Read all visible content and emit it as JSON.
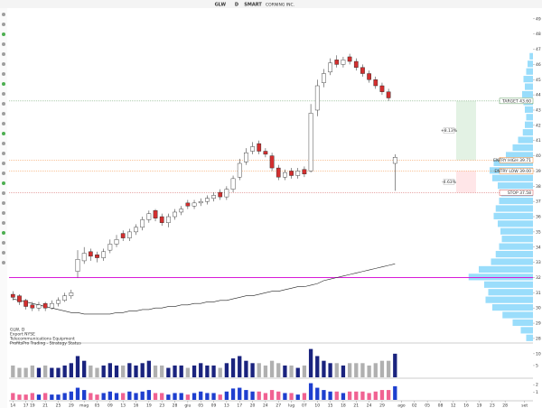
{
  "chart_data": {
    "type": "candlestick",
    "header": {
      "symbol": "GLW",
      "period": "D",
      "exchange": "SMART",
      "company": "CORNING INC."
    },
    "legend_lines": [
      "GLW, D",
      "Export NYSE",
      "Telecommunications Equipment",
      "ProfitsPro Trading - Strategy Status"
    ],
    "open": [
      30.9,
      30.8,
      30.5,
      30.2,
      30.0,
      30.3,
      30.0,
      30.3,
      30.5,
      30.8,
      32.4,
      33.1,
      33.7,
      33.5,
      33.3,
      33.8,
      34.2,
      34.9,
      34.6,
      35.0,
      35.3,
      35.8,
      36.4,
      36.0,
      35.6,
      36.0,
      36.3,
      36.9,
      36.7,
      36.9,
      37.0,
      37.2,
      37.6,
      37.3,
      37.8,
      38.6,
      39.6,
      40.3,
      40.8,
      40.3,
      40.0,
      39.2,
      38.6,
      39.0,
      38.7,
      39.1,
      39.0,
      43.0,
      44.8,
      45.5,
      46.3,
      46.0,
      46.5,
      46.2,
      45.8,
      45.4,
      45.0,
      44.6,
      44.2,
      39.5
    ],
    "high": [
      31.1,
      30.9,
      30.6,
      30.4,
      30.4,
      30.4,
      30.5,
      30.7,
      31.0,
      31.2,
      33.8,
      34.0,
      33.9,
      33.7,
      33.9,
      34.5,
      34.8,
      35.1,
      35.2,
      35.5,
      36.0,
      36.4,
      36.5,
      36.2,
      36.2,
      36.5,
      36.7,
      37.1,
      37.1,
      37.2,
      37.4,
      37.6,
      37.8,
      38.0,
      38.7,
      39.8,
      40.5,
      40.9,
      41.0,
      40.5,
      40.2,
      39.4,
      39.1,
      39.2,
      39.2,
      39.3,
      43.4,
      45.0,
      45.7,
      46.4,
      46.6,
      46.5,
      46.7,
      46.4,
      46.0,
      45.6,
      45.2,
      44.8,
      44.4,
      40.1
    ],
    "low": [
      30.5,
      30.2,
      29.9,
      29.8,
      29.8,
      29.8,
      29.9,
      30.1,
      30.4,
      30.6,
      32.0,
      32.9,
      33.1,
      33.0,
      33.1,
      33.6,
      34.0,
      34.4,
      34.4,
      34.8,
      35.1,
      35.6,
      35.7,
      35.4,
      35.3,
      35.8,
      36.1,
      36.5,
      36.5,
      36.7,
      36.8,
      37.0,
      37.1,
      37.1,
      37.6,
      38.4,
      39.4,
      40.1,
      40.1,
      39.9,
      39.0,
      38.4,
      38.4,
      38.5,
      38.5,
      38.6,
      38.9,
      42.6,
      44.5,
      45.3,
      45.8,
      45.8,
      46.0,
      45.6,
      45.2,
      44.8,
      44.4,
      44.0,
      43.6,
      37.7
    ],
    "close": [
      30.7,
      30.4,
      30.1,
      30.0,
      30.2,
      30.0,
      30.3,
      30.5,
      30.8,
      31.0,
      33.2,
      33.6,
      33.4,
      33.3,
      33.7,
      34.2,
      34.5,
      34.6,
      35.0,
      35.3,
      35.8,
      36.2,
      35.9,
      35.6,
      36.0,
      36.3,
      36.5,
      36.7,
      36.9,
      37.0,
      37.2,
      37.4,
      37.3,
      37.8,
      38.5,
      39.5,
      40.2,
      40.6,
      40.3,
      40.1,
      39.2,
      38.6,
      38.9,
      38.7,
      39.0,
      38.8,
      42.8,
      44.6,
      45.4,
      46.1,
      46.0,
      46.3,
      46.2,
      45.8,
      45.4,
      45.0,
      44.6,
      44.2,
      43.8,
      39.9
    ],
    "ma_long": {
      "color": "#222222",
      "values": [
        30.6,
        30.5,
        30.4,
        30.3,
        30.2,
        30.1,
        30.0,
        29.9,
        29.8,
        29.7,
        29.7,
        29.6,
        29.6,
        29.6,
        29.6,
        29.6,
        29.7,
        29.7,
        29.8,
        29.8,
        29.9,
        29.9,
        30.0,
        30.0,
        30.1,
        30.1,
        30.2,
        30.2,
        30.3,
        30.3,
        30.4,
        30.4,
        30.5,
        30.5,
        30.6,
        30.7,
        30.8,
        30.8,
        30.9,
        31.0,
        31.1,
        31.1,
        31.2,
        31.3,
        31.4,
        31.4,
        31.5,
        31.6,
        31.8,
        31.9,
        32.0,
        32.1,
        32.2,
        32.3,
        32.4,
        32.5,
        32.6,
        32.7,
        32.8,
        32.9
      ]
    },
    "up_color": "#ffffff",
    "down_color": "#d32f2f",
    "ylim": [
      27.7,
      49.7
    ],
    "yticks": [
      28,
      29,
      30,
      31,
      32,
      33,
      34,
      35,
      36,
      37,
      38,
      39,
      40,
      41,
      42,
      43,
      44,
      45,
      46,
      47,
      48,
      49
    ],
    "xlim": [
      -0.6,
      80.3
    ],
    "xticks": [
      {
        "value": 0,
        "label": "14"
      },
      {
        "value": 2,
        "label": "17"
      },
      {
        "value": 3,
        "label": "19"
      },
      {
        "value": 5,
        "label": "21"
      },
      {
        "value": 7,
        "label": "25"
      },
      {
        "value": 9,
        "label": "29"
      },
      {
        "value": 11,
        "label": "mag"
      },
      {
        "value": 13,
        "label": "05"
      },
      {
        "value": 15,
        "label": "09"
      },
      {
        "value": 17,
        "label": "13"
      },
      {
        "value": 19,
        "label": "16"
      },
      {
        "value": 21,
        "label": "19"
      },
      {
        "value": 23,
        "label": "23"
      },
      {
        "value": 25,
        "label": "28"
      },
      {
        "value": 27,
        "label": "giu"
      },
      {
        "value": 29,
        "label": "05"
      },
      {
        "value": 31,
        "label": "09"
      },
      {
        "value": 33,
        "label": "13"
      },
      {
        "value": 35,
        "label": "17"
      },
      {
        "value": 37,
        "label": "20"
      },
      {
        "value": 39,
        "label": "24"
      },
      {
        "value": 41,
        "label": "27"
      },
      {
        "value": 43,
        "label": "lug"
      },
      {
        "value": 45,
        "label": "07"
      },
      {
        "value": 47,
        "label": "10"
      },
      {
        "value": 49,
        "label": "15"
      },
      {
        "value": 51,
        "label": "18"
      },
      {
        "value": 53,
        "label": "21"
      },
      {
        "value": 55,
        "label": "24"
      },
      {
        "value": 57,
        "label": "29"
      },
      {
        "value": 60,
        "label": "ago"
      },
      {
        "value": 62,
        "label": "02"
      },
      {
        "value": 64,
        "label": "05"
      },
      {
        "value": 66,
        "label": "08"
      },
      {
        "value": 68,
        "label": "12"
      },
      {
        "value": 70,
        "label": "16"
      },
      {
        "value": 72,
        "label": "19"
      },
      {
        "value": 74,
        "label": "23"
      },
      {
        "value": 76,
        "label": "28"
      },
      {
        "value": 79,
        "label": "set"
      }
    ],
    "levels": [
      {
        "label": "TARGET 43.60",
        "value": 43.6,
        "color": "#2e7d32"
      },
      {
        "label": "ENTRY HIGH 39.71",
        "value": 39.71,
        "color": "#ef6c00"
      },
      {
        "label": "ENTRY LOW 39.00",
        "value": 39.0,
        "color": "#ef6c00"
      },
      {
        "label": "STOP 37.58",
        "value": 37.58,
        "color": "#c62828"
      }
    ],
    "annotations": [
      "+8.13%",
      "-4.63%"
    ],
    "magenta_line": {
      "value": 32.0,
      "color": "#d81bd8"
    },
    "profile": {
      "color": "#81d4fa",
      "xlim": [
        0,
        100
      ],
      "prices": [
        28,
        28.5,
        29,
        29.5,
        30,
        30.5,
        31,
        31.5,
        32,
        32.5,
        33,
        33.5,
        34,
        34.5,
        35,
        35.5,
        36,
        36.5,
        37,
        37.5,
        38,
        38.5,
        39,
        39.5,
        40,
        40.5,
        41,
        41.5,
        42,
        42.5,
        43,
        43.5,
        44,
        44.5,
        45,
        45.5,
        46,
        46.5
      ],
      "values": [
        10,
        18,
        30,
        45,
        60,
        70,
        66,
        72,
        95,
        80,
        62,
        55,
        50,
        46,
        48,
        52,
        58,
        55,
        50,
        47,
        52,
        60,
        64,
        58,
        40,
        30,
        22,
        15,
        12,
        10,
        12,
        14,
        16,
        12,
        14,
        10,
        8,
        5
      ]
    },
    "volume": {
      "ylim": [
        0,
        13
      ],
      "yticks": [
        5,
        10
      ],
      "up_color": "#1a237e",
      "down_color": "#b0b0b0",
      "values": [
        5,
        4,
        4,
        5,
        4,
        5,
        4,
        4,
        5,
        6,
        9,
        7,
        5,
        4,
        5,
        6,
        5,
        5,
        6,
        5,
        6,
        7,
        5,
        5,
        4,
        5,
        5,
        4,
        5,
        6,
        5,
        5,
        4,
        6,
        8,
        9,
        7,
        6,
        6,
        5,
        7,
        6,
        5,
        5,
        4,
        5,
        12,
        9,
        7,
        6,
        6,
        5,
        6,
        6,
        6,
        5,
        6,
        7,
        7,
        10
      ]
    },
    "rel_volume": {
      "ylim": [
        0,
        2.5
      ],
      "yticks": [
        1,
        2
      ],
      "up_color": "#1e3fcf",
      "down_color": "#f06292",
      "values": [
        0.9,
        0.7,
        0.7,
        0.9,
        0.7,
        0.9,
        0.7,
        0.7,
        0.9,
        1.1,
        1.6,
        1.3,
        0.9,
        0.7,
        0.9,
        1.1,
        0.9,
        0.9,
        1.1,
        0.9,
        1.1,
        1.3,
        0.9,
        0.9,
        0.7,
        0.9,
        0.9,
        0.7,
        0.9,
        1.1,
        0.9,
        0.9,
        0.7,
        1.1,
        1.5,
        1.6,
        1.3,
        1.1,
        1.1,
        0.9,
        1.3,
        1.1,
        0.9,
        0.9,
        0.7,
        0.9,
        2.2,
        1.6,
        1.3,
        1.1,
        1.1,
        0.9,
        1.1,
        1.1,
        1.1,
        0.9,
        1.1,
        1.3,
        1.3,
        1.8
      ]
    }
  }
}
